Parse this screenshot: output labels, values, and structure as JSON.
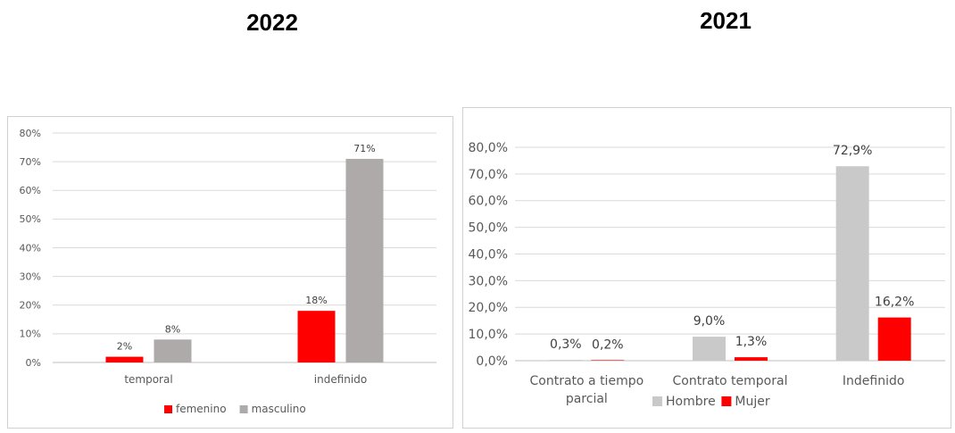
{
  "titles": {
    "left": "2022",
    "right": "2021"
  },
  "chart_data": [
    {
      "type": "bar",
      "categories": [
        "temporal",
        "indefinido"
      ],
      "series": [
        {
          "name": "femenino",
          "values": [
            2,
            18
          ],
          "labels": [
            "2%",
            "18%"
          ],
          "color": "#ff0000"
        },
        {
          "name": "masculino",
          "values": [
            8,
            71
          ],
          "labels": [
            "8%",
            "71%"
          ],
          "color": "#aeaaaa"
        }
      ],
      "ylim": [
        0,
        80
      ],
      "yticks": [
        0,
        10,
        20,
        30,
        40,
        50,
        60,
        70,
        80
      ],
      "yticklabels": [
        "0%",
        "10%",
        "20%",
        "30%",
        "40%",
        "50%",
        "60%",
        "70%",
        "80%"
      ],
      "grid": true,
      "legend": "bottom",
      "title": "2022",
      "xlabel": "",
      "ylabel": ""
    },
    {
      "type": "bar",
      "categories": [
        "Contrato a tiempo parcial",
        "Contrato temporal",
        "Indefinido"
      ],
      "category_lines": [
        [
          "Contrato a tiempo",
          "parcial"
        ],
        [
          "Contrato temporal"
        ],
        [
          "Indefinido"
        ]
      ],
      "series": [
        {
          "name": "Hombre",
          "values": [
            0.3,
            9.0,
            72.9
          ],
          "labels": [
            "0,3%",
            "9,0%",
            "72,9%"
          ],
          "color": "#c9c9c9"
        },
        {
          "name": "Mujer",
          "values": [
            0.2,
            1.3,
            16.2
          ],
          "labels": [
            "0,2%",
            "1,3%",
            "16,2%"
          ],
          "color": "#ff0000"
        }
      ],
      "ylim": [
        0,
        80
      ],
      "yticks": [
        0,
        10,
        20,
        30,
        40,
        50,
        60,
        70,
        80
      ],
      "yticklabels": [
        "0,0%",
        "10,0%",
        "20,0%",
        "30,0%",
        "40,0%",
        "50,0%",
        "60,0%",
        "70,0%",
        "80,0%"
      ],
      "grid": true,
      "legend": "bottom",
      "title": "2021",
      "xlabel": "",
      "ylabel": ""
    }
  ]
}
